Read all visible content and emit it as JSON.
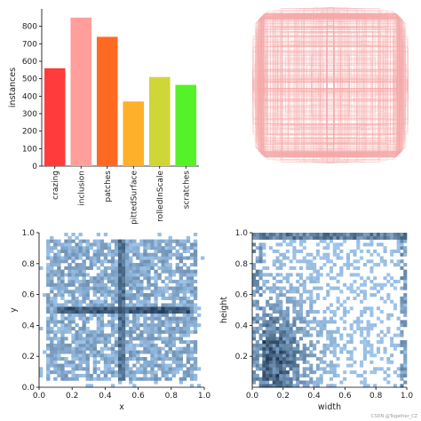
{
  "chart_data": [
    {
      "type": "bar",
      "categories": [
        "crazing",
        "inclusion",
        "patches",
        "pittedSurface",
        "rolledInScale",
        "scratches"
      ],
      "values": [
        560,
        850,
        740,
        370,
        510,
        465
      ],
      "colors": [
        "#ff3b3b",
        "#ff9e9a",
        "#ff6a22",
        "#ffb02a",
        "#cfd638",
        "#55f22a"
      ],
      "xlabel": "",
      "ylabel": "instances",
      "ylim": [
        0,
        900
      ],
      "yticks": [
        0,
        100,
        200,
        300,
        400,
        500,
        600,
        700,
        800
      ]
    },
    {
      "type": "heatmap",
      "description_colors": {
        "line": "#f5aaaa"
      },
      "axes": "off"
    },
    {
      "type": "heatmap",
      "xlabel": "x",
      "ylabel": "y",
      "xlim": [
        0.0,
        1.0
      ],
      "ylim": [
        0.0,
        1.0
      ],
      "xticks": [
        "0.0",
        "0.2",
        "0.4",
        "0.6",
        "0.8",
        "1.0"
      ],
      "yticks": [
        "0.0",
        "0.2",
        "0.4",
        "0.6",
        "0.8",
        "1.0"
      ],
      "colors": {
        "low": "#a6cdf3",
        "high": "#1b3550"
      }
    },
    {
      "type": "heatmap",
      "xlabel": "width",
      "ylabel": "height",
      "xlim": [
        0.0,
        1.0
      ],
      "ylim": [
        0.0,
        1.0
      ],
      "xticks": [
        "0.0",
        "0.2",
        "0.4",
        "0.6",
        "0.8",
        "1.0"
      ],
      "yticks": [
        "0.2",
        "0.4",
        "0.6",
        "0.8",
        "1.0"
      ],
      "colors": {
        "low": "#a6cdf3",
        "high": "#1b3550"
      }
    }
  ],
  "watermark": "CSDN @Together_CZ"
}
